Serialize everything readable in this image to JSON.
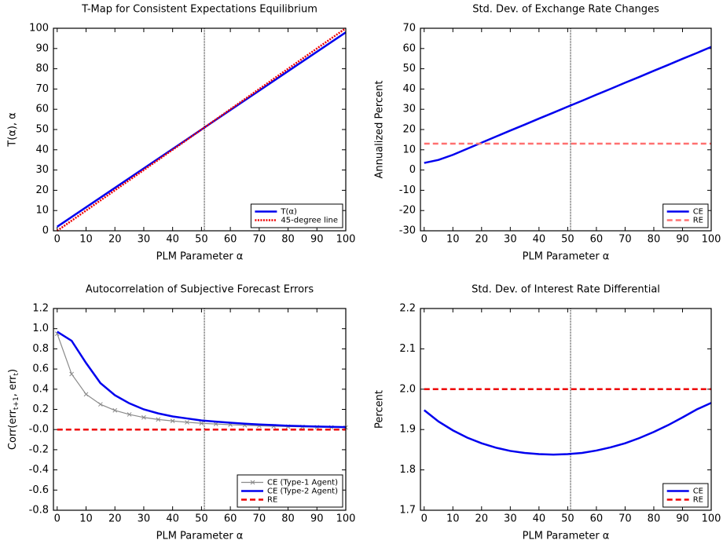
{
  "chart_data": [
    {
      "type": "line",
      "title": "T-Map for Consistent Expectations Equilibrium",
      "xlabel": "PLM Parameter α",
      "ylabel": "T(α),  α",
      "x": [
        0,
        5,
        10,
        15,
        20,
        25,
        30,
        35,
        40,
        45,
        50,
        55,
        60,
        65,
        70,
        75,
        80,
        85,
        90,
        95,
        100
      ],
      "xlim": [
        -1.3,
        100
      ],
      "ylim": [
        0,
        100
      ],
      "xticks": [
        0,
        10,
        20,
        30,
        40,
        50,
        60,
        70,
        80,
        90,
        100
      ],
      "yticks": [
        0,
        10,
        20,
        30,
        40,
        50,
        60,
        70,
        80,
        90,
        100
      ],
      "vline": 51,
      "legend": "lower right",
      "series": [
        {
          "name": "T(α)",
          "color": "#0000ee",
          "dash": "solid",
          "values": [
            2,
            6.8,
            11.6,
            16.4,
            21.2,
            26,
            30.8,
            35.6,
            40.4,
            45.2,
            50,
            54.8,
            59.6,
            64.4,
            69.2,
            74,
            78.8,
            83.6,
            88.4,
            93.2,
            98
          ]
        },
        {
          "name": "45-degree line",
          "color": "#ee0000",
          "dash": "dotted",
          "values": [
            0,
            5,
            10,
            15,
            20,
            25,
            30,
            35,
            40,
            45,
            50,
            55,
            60,
            65,
            70,
            75,
            80,
            85,
            90,
            95,
            100
          ]
        }
      ]
    },
    {
      "type": "line",
      "title": "Std. Dev. of Exchange Rate Changes",
      "xlabel": "PLM Parameter α",
      "ylabel": "Annualized Percent",
      "x": [
        0,
        5,
        10,
        15,
        20,
        25,
        30,
        35,
        40,
        45,
        50,
        55,
        60,
        65,
        70,
        75,
        80,
        85,
        90,
        95,
        100
      ],
      "xlim": [
        -1.3,
        100
      ],
      "ylim": [
        -30,
        70
      ],
      "xticks": [
        0,
        10,
        20,
        30,
        40,
        50,
        60,
        70,
        80,
        90,
        100
      ],
      "yticks": [
        -30,
        -20,
        -10,
        0,
        10,
        20,
        30,
        40,
        50,
        60,
        70
      ],
      "vline": 51,
      "legend": "lower right",
      "series": [
        {
          "name": "CE",
          "color": "#0000ee",
          "dash": "solid",
          "values": [
            3.5,
            5,
            7.5,
            10.5,
            13.5,
            16.5,
            19.5,
            22.4,
            25.4,
            28.3,
            31.3,
            34.2,
            37.2,
            40.1,
            43.1,
            46,
            49,
            51.9,
            54.9,
            57.8,
            60.8
          ]
        },
        {
          "name": "RE",
          "color": "#ff7070",
          "dash": "dashed",
          "values": [
            13,
            13,
            13,
            13,
            13,
            13,
            13,
            13,
            13,
            13,
            13,
            13,
            13,
            13,
            13,
            13,
            13,
            13,
            13,
            13,
            13
          ]
        }
      ]
    },
    {
      "type": "line",
      "title": "Autocorrelation of Subjective Forecast Errors",
      "xlabel": "PLM Parameter α",
      "ylabel": [
        "Corr(err",
        "t+1",
        ", err",
        "t",
        ")"
      ],
      "x": [
        0,
        5,
        10,
        15,
        20,
        25,
        30,
        35,
        40,
        45,
        50,
        55,
        60,
        65,
        70,
        75,
        80,
        85,
        90,
        95,
        100
      ],
      "xlim": [
        -1.3,
        100
      ],
      "ylim": [
        -0.8,
        1.2
      ],
      "xticks": [
        0,
        10,
        20,
        30,
        40,
        50,
        60,
        70,
        80,
        90,
        100
      ],
      "yticks": [
        -0.8,
        -0.6,
        -0.4,
        -0.2,
        {
          "value": 0,
          "label": "-0.0"
        },
        0.2,
        0.4,
        0.6,
        0.8,
        {
          "value": 1,
          "label": "1.0"
        },
        1.2
      ],
      "vline": 51,
      "legend": "lower right",
      "series": [
        {
          "name": "CE (Type-1 Agent)",
          "color": "#8a8a8a",
          "dash": "solid",
          "marker": "x",
          "values": [
            0.95,
            0.55,
            0.35,
            0.25,
            0.19,
            0.15,
            0.12,
            0.1,
            0.085,
            0.072,
            0.062,
            0.055,
            0.048,
            0.042,
            0.037,
            0.033,
            0.03,
            0.027,
            0.024,
            0.022,
            0.02
          ]
        },
        {
          "name": "CE (Type-2 Agent)",
          "color": "#0000ee",
          "dash": "solid",
          "values": [
            0.97,
            0.88,
            0.66,
            0.46,
            0.34,
            0.26,
            0.2,
            0.16,
            0.13,
            0.11,
            0.09,
            0.078,
            0.068,
            0.058,
            0.05,
            0.044,
            0.038,
            0.034,
            0.03,
            0.027,
            0.024
          ]
        },
        {
          "name": "RE",
          "color": "#ee0000",
          "dash": "dashed",
          "values": [
            0,
            0,
            0,
            0,
            0,
            0,
            0,
            0,
            0,
            0,
            0,
            0,
            0,
            0,
            0,
            0,
            0,
            0,
            0,
            0,
            0
          ]
        }
      ]
    },
    {
      "type": "line",
      "title": "Std. Dev. of Interest Rate Differential",
      "xlabel": "PLM Parameter α",
      "ylabel": "Percent",
      "x": [
        0,
        5,
        10,
        15,
        20,
        25,
        30,
        35,
        40,
        45,
        50,
        55,
        60,
        65,
        70,
        75,
        80,
        85,
        90,
        95,
        100
      ],
      "xlim": [
        -1.3,
        100
      ],
      "ylim": [
        1.7,
        2.2
      ],
      "xticks": [
        0,
        10,
        20,
        30,
        40,
        50,
        60,
        70,
        80,
        90,
        100
      ],
      "yticks": [
        1.7,
        1.8,
        1.9,
        {
          "value": 2,
          "label": "2.0"
        },
        2.1,
        2.2
      ],
      "vline": 51,
      "legend": "lower right",
      "series": [
        {
          "name": "CE",
          "color": "#0000ee",
          "dash": "solid",
          "values": [
            1.948,
            1.92,
            1.898,
            1.88,
            1.866,
            1.855,
            1.847,
            1.842,
            1.839,
            1.838,
            1.839,
            1.842,
            1.848,
            1.856,
            1.866,
            1.879,
            1.894,
            1.911,
            1.93,
            1.95,
            1.966
          ]
        },
        {
          "name": "RE",
          "color": "#ee0000",
          "dash": "dashed",
          "values": [
            2,
            2,
            2,
            2,
            2,
            2,
            2,
            2,
            2,
            2,
            2,
            2,
            2,
            2,
            2,
            2,
            2,
            2,
            2,
            2,
            2
          ]
        }
      ]
    }
  ]
}
